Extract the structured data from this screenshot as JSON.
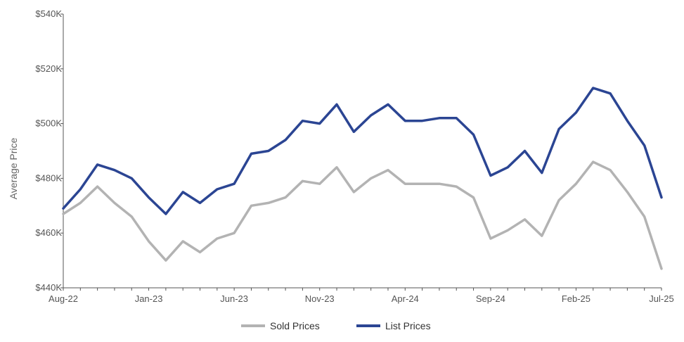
{
  "chart_data": {
    "type": "line",
    "title": "",
    "xlabel": "",
    "ylabel": "Average Price",
    "ylim": [
      440000,
      540000
    ],
    "y_ticks": [
      {
        "value": 440000,
        "label": "$440K"
      },
      {
        "value": 460000,
        "label": "$460K"
      },
      {
        "value": 480000,
        "label": "$480K"
      },
      {
        "value": 500000,
        "label": "$500K"
      },
      {
        "value": 520000,
        "label": "$520K"
      },
      {
        "value": 540000,
        "label": "$540K"
      }
    ],
    "x": [
      "Aug-22",
      "Sep-22",
      "Oct-22",
      "Nov-22",
      "Dec-22",
      "Jan-23",
      "Feb-23",
      "Mar-23",
      "Apr-23",
      "May-23",
      "Jun-23",
      "Jul-23",
      "Aug-23",
      "Sep-23",
      "Oct-23",
      "Nov-23",
      "Dec-23",
      "Jan-24",
      "Feb-24",
      "Mar-24",
      "Apr-24",
      "May-24",
      "Jun-24",
      "Jul-24",
      "Aug-24",
      "Sep-24",
      "Oct-24",
      "Nov-24",
      "Dec-24",
      "Jan-25",
      "Feb-25",
      "Mar-25",
      "Apr-25",
      "May-25",
      "Jun-25",
      "Jul-25"
    ],
    "x_tick_labels": [
      "Aug-22",
      "Jan-23",
      "Jun-23",
      "Nov-23",
      "Apr-24",
      "Sep-24",
      "Feb-25",
      "Jul-25"
    ],
    "grid": false,
    "legend_position": "bottom-center",
    "series": [
      {
        "name": "Sold Prices",
        "color": "#b3b3b3",
        "values": [
          467000,
          471000,
          477000,
          471000,
          466000,
          457000,
          450000,
          457000,
          453000,
          458000,
          460000,
          470000,
          471000,
          473000,
          479000,
          478000,
          484000,
          475000,
          480000,
          483000,
          478000,
          478000,
          478000,
          477000,
          473000,
          458000,
          461000,
          465000,
          459000,
          472000,
          478000,
          486000,
          483000,
          475000,
          466000,
          447000
        ]
      },
      {
        "name": "List Prices",
        "color": "#2b4593",
        "values": [
          469000,
          476000,
          485000,
          483000,
          480000,
          473000,
          467000,
          475000,
          471000,
          476000,
          478000,
          489000,
          490000,
          494000,
          501000,
          500000,
          507000,
          497000,
          503000,
          507000,
          501000,
          501000,
          502000,
          502000,
          496000,
          481000,
          484000,
          490000,
          482000,
          498000,
          504000,
          513000,
          511000,
          501000,
          492000,
          473000
        ]
      }
    ]
  }
}
